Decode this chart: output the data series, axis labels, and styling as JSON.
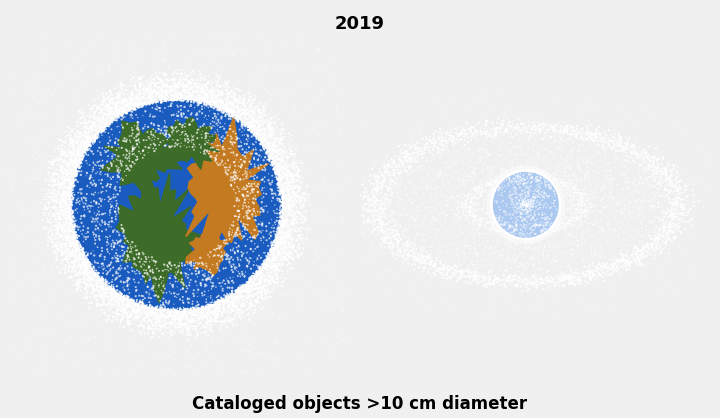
{
  "title": "2019",
  "caption": "Cataloged objects >10 cm diameter",
  "title_fontsize": 13,
  "caption_fontsize": 12,
  "bg_color": "#000000",
  "figure_bg": "#f0f0f0",
  "earth_ocean_color": "#1a5bbf",
  "earth_land_green": "#3d6b28",
  "earth_land_orange": "#c47a20",
  "debris_color": "#ffffff",
  "seed": 42
}
